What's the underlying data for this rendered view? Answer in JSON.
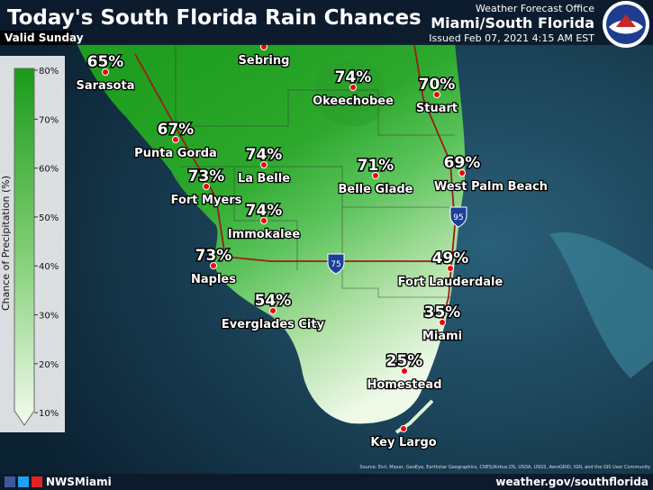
{
  "header": {
    "title": "Today's South Florida Rain Chances",
    "subtitle": "Valid Sunday",
    "office": "Weather Forecast Office",
    "office_area": "Miami/South Florida",
    "issued": "Issued Feb 07, 2021 4:15 AM EST"
  },
  "legend": {
    "title": "Chance of Precipitation (%)",
    "ticks": [
      "80%",
      "70%",
      "60%",
      "50%",
      "40%",
      "30%",
      "20%",
      "10%"
    ]
  },
  "cities": [
    {
      "name": "Sarasota",
      "chance": "65%"
    },
    {
      "name": "Sebring"
    },
    {
      "name": "Okeechobee",
      "chance": "74%"
    },
    {
      "name": "Stuart",
      "chance": "70%"
    },
    {
      "name": "Punta Gorda",
      "chance": "67%"
    },
    {
      "name": "La Belle",
      "chance": "74%"
    },
    {
      "name": "Fort Myers",
      "chance": "73%"
    },
    {
      "name": "Belle Glade",
      "chance": "71%"
    },
    {
      "name": "West Palm Beach",
      "chance": "69%"
    },
    {
      "name": "Immokalee",
      "chance": "74%"
    },
    {
      "name": "Naples",
      "chance": "73%"
    },
    {
      "name": "Fort Lauderdale",
      "chance": "49%"
    },
    {
      "name": "Everglades City",
      "chance": "54%"
    },
    {
      "name": "Miami",
      "chance": "35%"
    },
    {
      "name": "Homestead",
      "chance": "25%"
    },
    {
      "name": "Key Largo"
    }
  ],
  "highways": [
    "95",
    "75"
  ],
  "footer": {
    "social": "NWSMiami",
    "url": "weather.gov/southflorida",
    "source": "Source: Esri, Maxar, GeoEye, Earthstar Geographics, CNES/Airbus DS, USDA, USGS, AeroGRID, IGN, and the GIS User Community"
  }
}
